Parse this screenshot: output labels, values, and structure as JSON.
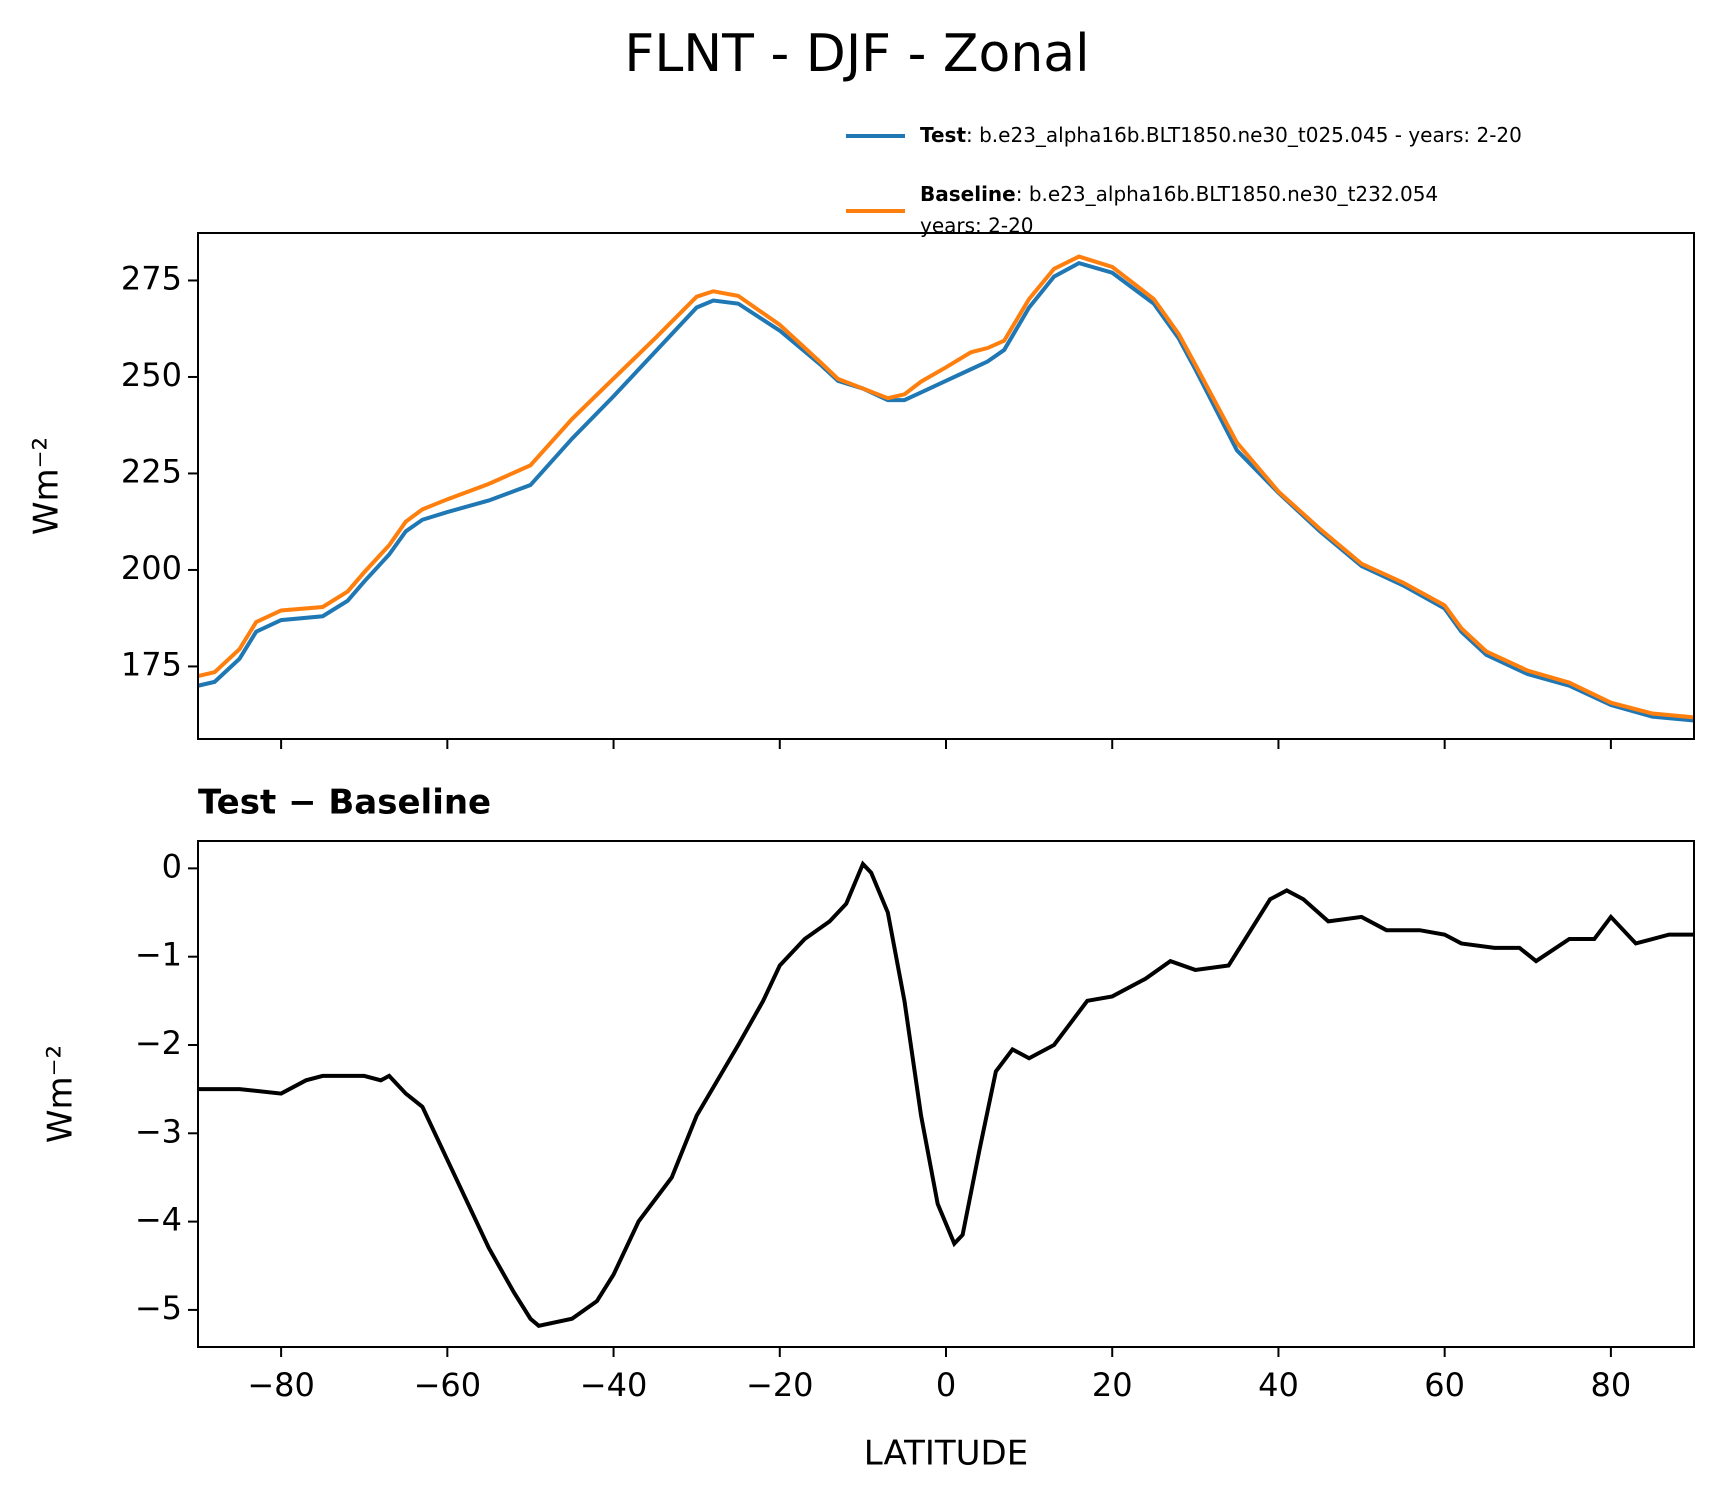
{
  "chart_data": [
    {
      "type": "line",
      "title": "FLNT - DJF - Zonal",
      "ylabel": "Wm⁻²",
      "x": [
        -90,
        -88,
        -85,
        -83,
        -80,
        -75,
        -72,
        -70,
        -67,
        -65,
        -63,
        -60,
        -55,
        -50,
        -45,
        -40,
        -35,
        -30,
        -28,
        -25,
        -20,
        -15,
        -13,
        -10,
        -7,
        -5,
        -3,
        0,
        3,
        5,
        7,
        10,
        13,
        16,
        20,
        25,
        28,
        30,
        35,
        40,
        45,
        50,
        55,
        60,
        62,
        65,
        70,
        75,
        80,
        85,
        90
      ],
      "series": [
        {
          "name": "Test",
          "description": [
            ": b.e23_alpha16b.BLT1850.ne30_t025.045 - years: 2-20"
          ],
          "color": "#1f77b4",
          "values": [
            170,
            171,
            177,
            184,
            187,
            188,
            192,
            197,
            204,
            210,
            213,
            215,
            218,
            222,
            234,
            245,
            256.5,
            268,
            269.8,
            269,
            262,
            253,
            249,
            247,
            244,
            244,
            246,
            249,
            252,
            254,
            257,
            268,
            276,
            279.5,
            277,
            269,
            260,
            252,
            231,
            220,
            210,
            201,
            196,
            190,
            184,
            178,
            173,
            170,
            165,
            162,
            161
          ]
        },
        {
          "name": "Baseline",
          "description": [
            ": b.e23_alpha16b.BLT1850.ne30_t232.054",
            "years: 2-20"
          ],
          "color": "#ff7f0e",
          "values": [
            172.5,
            173.5,
            179.5,
            186.5,
            189.5,
            190.4,
            194.4,
            199.4,
            206.4,
            212.5,
            215.7,
            218.3,
            222.3,
            227.1,
            239.1,
            249.6,
            260,
            270.8,
            272.2,
            271,
            263.5,
            253.6,
            249.5,
            247,
            244.5,
            245.5,
            248.8,
            252.5,
            256.4,
            257.5,
            259.4,
            270.2,
            278,
            281.2,
            278.5,
            270.2,
            261.1,
            253.2,
            233,
            220.3,
            210.6,
            201.6,
            196.7,
            190.8,
            184.9,
            178.9,
            173.9,
            170.8,
            165.6,
            162.8,
            161.8
          ]
        }
      ],
      "xlim": [
        -90,
        90
      ],
      "xticks": [
        -80,
        -60,
        -40,
        -20,
        0,
        20,
        40,
        60,
        80
      ],
      "ylim": [
        156.2,
        287.3
      ],
      "yticks": [
        175,
        200,
        225,
        250,
        275
      ]
    },
    {
      "type": "line",
      "title": "Test − Baseline",
      "xlabel": "LATITUDE",
      "ylabel": "Wm⁻²",
      "color": "#000000",
      "x": [
        -90,
        -85,
        -80,
        -77,
        -75,
        -70,
        -68,
        -67,
        -65,
        -63,
        -60,
        -55,
        -52,
        -50,
        -49,
        -45,
        -42,
        -40,
        -37,
        -33,
        -30,
        -25,
        -22,
        -20,
        -17,
        -14,
        -12,
        -10,
        -9,
        -7,
        -5,
        -3,
        -1,
        1,
        2,
        4,
        6,
        8,
        10,
        13,
        15,
        17,
        20,
        24,
        27,
        30,
        34,
        36,
        39,
        41,
        43,
        46,
        50,
        53,
        57,
        60,
        62,
        66,
        69,
        71,
        75,
        78,
        80,
        83,
        87,
        90
      ],
      "values": [
        -2.5,
        -2.5,
        -2.55,
        -2.4,
        -2.35,
        -2.35,
        -2.4,
        -2.35,
        -2.55,
        -2.7,
        -3.3,
        -4.3,
        -4.8,
        -5.1,
        -5.18,
        -5.1,
        -4.9,
        -4.6,
        -4.0,
        -3.5,
        -2.8,
        -2.0,
        -1.5,
        -1.1,
        -0.8,
        -0.6,
        -0.4,
        0.05,
        -0.05,
        -0.5,
        -1.5,
        -2.8,
        -3.8,
        -4.25,
        -4.15,
        -3.2,
        -2.3,
        -2.05,
        -2.15,
        -2.0,
        -1.75,
        -1.5,
        -1.45,
        -1.25,
        -1.05,
        -1.15,
        -1.1,
        -0.8,
        -0.35,
        -0.25,
        -0.35,
        -0.6,
        -0.55,
        -0.7,
        -0.7,
        -0.75,
        -0.85,
        -0.9,
        -0.9,
        -1.05,
        -0.8,
        -0.8,
        -0.55,
        -0.85,
        -0.75,
        -0.75
      ],
      "xlim": [
        -90,
        90
      ],
      "xticks": [
        {
          "value": -80,
          "label": "−80"
        },
        {
          "value": -60,
          "label": "−60"
        },
        {
          "value": -40,
          "label": "−40"
        },
        {
          "value": -20,
          "label": "−20"
        },
        0,
        20,
        40,
        60,
        80
      ],
      "ylim": [
        -5.42,
        0.31
      ],
      "yticks": [
        {
          "value": -5,
          "label": "−5"
        },
        {
          "value": -4,
          "label": "−4"
        },
        {
          "value": -3,
          "label": "−3"
        },
        {
          "value": -2,
          "label": "−2"
        },
        {
          "value": -1,
          "label": "−1"
        },
        0
      ]
    }
  ]
}
